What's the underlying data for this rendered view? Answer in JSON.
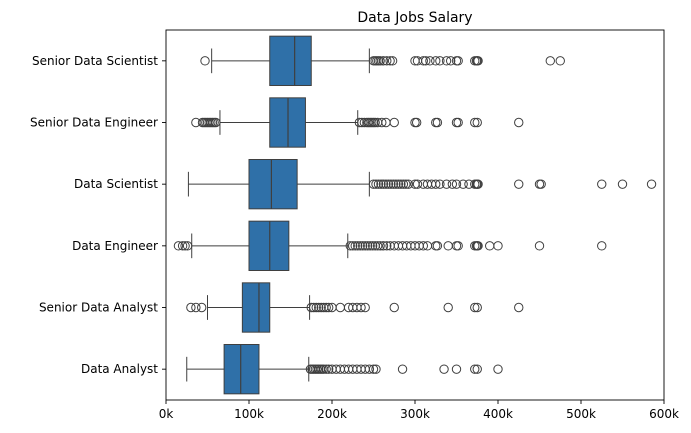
{
  "chart_data": {
    "type": "boxplot",
    "orientation": "horizontal",
    "title": "Data Jobs Salary",
    "xlabel": "",
    "ylabel": "",
    "xlim": [
      0,
      600000
    ],
    "x_ticks": [
      0,
      100000,
      200000,
      300000,
      400000,
      500000,
      600000
    ],
    "x_tick_labels": [
      "0k",
      "100k",
      "200k",
      "300k",
      "400k",
      "500k",
      "600k"
    ],
    "grid": false,
    "box_color": "#2f70a8",
    "line_color": "#3f3f3f",
    "categories": [
      "Senior Data Scientist",
      "Senior Data Engineer",
      "Data Scientist",
      "Data Engineer",
      "Senior Data Analyst",
      "Data Analyst"
    ],
    "boxes": [
      {
        "label": "Senior Data Scientist",
        "whisker_low": 55000,
        "q1": 125000,
        "median": 155000,
        "q3": 175000,
        "whisker_high": 245000,
        "outliers": [
          47000,
          250000,
          252000,
          254000,
          256000,
          258000,
          262000,
          266000,
          270000,
          273000,
          300000,
          303000,
          310000,
          313000,
          318000,
          325000,
          330000,
          338000,
          343000,
          350000,
          352000,
          372000,
          374000,
          375000,
          376000,
          463000,
          475000
        ]
      },
      {
        "label": "Senior Data Engineer",
        "whisker_low": 65000,
        "q1": 125000,
        "median": 147000,
        "q3": 168000,
        "whisker_high": 231000,
        "outliers": [
          36000,
          44000,
          46000,
          48000,
          50000,
          52000,
          54000,
          56000,
          58000,
          60000,
          233000,
          236000,
          239000,
          242000,
          244000,
          246000,
          248000,
          250000,
          252000,
          255000,
          260000,
          265000,
          275000,
          300000,
          302000,
          325000,
          327000,
          350000,
          352000,
          372000,
          375000,
          425000
        ]
      },
      {
        "label": "Data Scientist",
        "whisker_low": 27000,
        "q1": 100000,
        "median": 127000,
        "q3": 158000,
        "whisker_high": 245000,
        "outliers": [
          250000,
          253000,
          256000,
          259000,
          262000,
          265000,
          268000,
          271000,
          274000,
          277000,
          280000,
          283000,
          286000,
          289000,
          292000,
          300000,
          303000,
          310000,
          315000,
          320000,
          325000,
          330000,
          338000,
          345000,
          350000,
          358000,
          365000,
          372000,
          374000,
          375000,
          376000,
          425000,
          450000,
          452000,
          525000,
          550000,
          585000
        ]
      },
      {
        "label": "Data Engineer",
        "whisker_low": 31000,
        "q1": 100000,
        "median": 125000,
        "q3": 148000,
        "whisker_high": 219000,
        "outliers": [
          15000,
          20000,
          23000,
          26000,
          222000,
          225000,
          228000,
          231000,
          234000,
          237000,
          240000,
          243000,
          246000,
          249000,
          252000,
          255000,
          258000,
          262000,
          266000,
          270000,
          275000,
          280000,
          285000,
          290000,
          295000,
          300000,
          305000,
          310000,
          315000,
          325000,
          327000,
          340000,
          350000,
          352000,
          372000,
          374000,
          375000,
          376000,
          390000,
          400000,
          450000,
          525000
        ]
      },
      {
        "label": "Senior Data Analyst",
        "whisker_low": 50000,
        "q1": 92000,
        "median": 112000,
        "q3": 125000,
        "whisker_high": 173000,
        "outliers": [
          30000,
          36000,
          43000,
          175000,
          178000,
          181000,
          184000,
          187000,
          190000,
          193000,
          196000,
          200000,
          210000,
          220000,
          225000,
          230000,
          235000,
          240000,
          275000,
          340000,
          372000,
          375000,
          425000
        ]
      },
      {
        "label": "Data Analyst",
        "whisker_low": 25000,
        "q1": 70000,
        "median": 90000,
        "q3": 112000,
        "whisker_high": 172000,
        "outliers": [
          174000,
          176000,
          178000,
          180000,
          182000,
          184000,
          186000,
          188000,
          190000,
          193000,
          196000,
          200000,
          205000,
          210000,
          215000,
          220000,
          225000,
          230000,
          235000,
          240000,
          245000,
          250000,
          253000,
          285000,
          335000,
          350000,
          372000,
          375000,
          400000
        ]
      }
    ]
  }
}
